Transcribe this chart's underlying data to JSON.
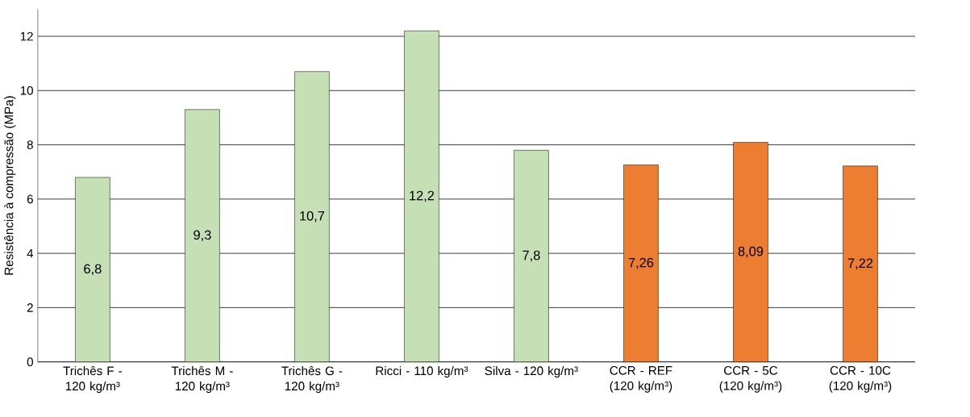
{
  "chart_data": {
    "type": "bar",
    "ylabel": "Resistência à compressão (MPa)",
    "categories": [
      "Trichês F - 120 kg/m³",
      "Trichês M - 120 kg/m³",
      "Trichês G - 120 kg/m³",
      "Ricci - 110 kg/m³",
      "Silva - 120 kg/m³",
      "CCR - REF (120 kg/m³)",
      "CCR - 5C (120 kg/m³)",
      "CCR - 10C (120 kg/m³)"
    ],
    "values": [
      6.8,
      9.3,
      10.7,
      12.2,
      7.8,
      7.26,
      8.09,
      7.22
    ],
    "value_labels": [
      "6,8",
      "9,3",
      "10,7",
      "12,2",
      "7,8",
      "7,26",
      "8,09",
      "7,22"
    ],
    "colors": [
      "#c5e0b4",
      "#c5e0b4",
      "#c5e0b4",
      "#c5e0b4",
      "#c5e0b4",
      "#ed7d31",
      "#ed7d31",
      "#ed7d31"
    ],
    "ylim": [
      0,
      13
    ],
    "yticks": [
      0,
      2,
      4,
      6,
      8,
      10,
      12
    ],
    "grid": "y"
  }
}
